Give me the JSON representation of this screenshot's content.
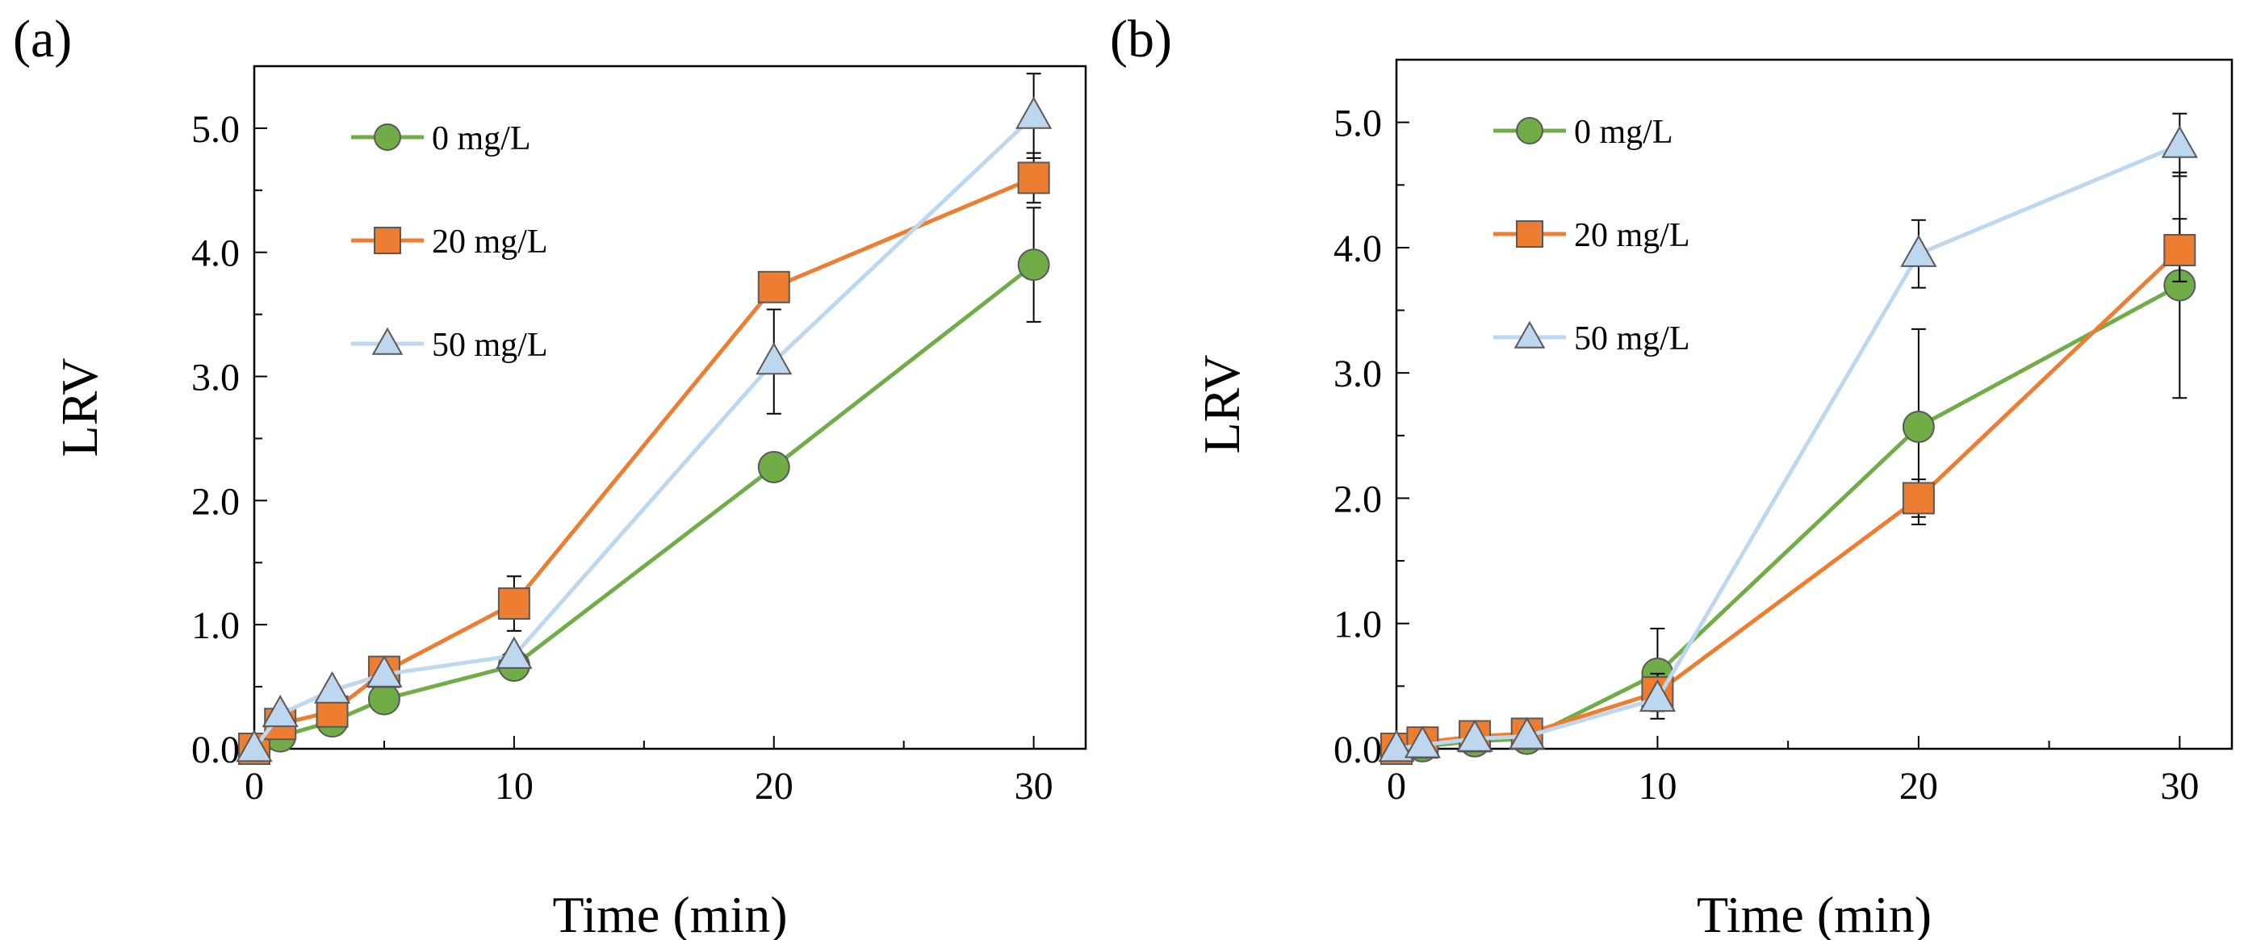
{
  "colors": {
    "0 mg/L": "#70ad47",
    "20 mg/L": "#ed7d31",
    "50 mg/L": "#bdd7ee",
    "marker_stroke": "#595959",
    "axis": "#000000"
  },
  "chart_data": [
    {
      "panel_label": "(a)",
      "type": "line",
      "xlabel": "Time (min)",
      "ylabel": "LRV",
      "xlim": [
        0,
        32
      ],
      "ylim": [
        0,
        5.5
      ],
      "xticks": [
        0,
        10,
        20,
        30
      ],
      "yticks": [
        "0.0",
        "1.0",
        "2.0",
        "3.0",
        "4.0",
        "5.0"
      ],
      "legend": "top-left",
      "series": [
        {
          "name": "0 mg/L",
          "marker": "circle",
          "x": [
            0,
            1,
            3,
            5,
            10,
            20,
            30
          ],
          "y": [
            0.0,
            0.1,
            0.22,
            0.4,
            0.67,
            2.27,
            3.9
          ],
          "err": [
            0,
            0,
            0,
            0,
            0,
            0,
            0.46
          ]
        },
        {
          "name": "20 mg/L",
          "marker": "square",
          "x": [
            0,
            1,
            3,
            5,
            10,
            20,
            30
          ],
          "y": [
            0.0,
            0.2,
            0.3,
            0.62,
            1.17,
            3.72,
            4.6
          ],
          "err": [
            0,
            0,
            0,
            0,
            0.22,
            0,
            0.2
          ]
        },
        {
          "name": "50 mg/L",
          "marker": "triangle",
          "x": [
            0,
            1,
            3,
            5,
            10,
            20,
            30
          ],
          "y": [
            0.0,
            0.28,
            0.47,
            0.6,
            0.75,
            3.12,
            5.1
          ],
          "err": [
            0,
            0,
            0,
            0,
            0,
            0.42,
            0.34
          ]
        }
      ]
    },
    {
      "panel_label": "(b)",
      "type": "line",
      "xlabel": "Time (min)",
      "ylabel": "LRV",
      "xlim": [
        0,
        32
      ],
      "ylim": [
        0,
        5.5
      ],
      "xticks": [
        0,
        10,
        20,
        30
      ],
      "yticks": [
        "0.0",
        "1.0",
        "2.0",
        "3.0",
        "4.0",
        "5.0"
      ],
      "legend": "top-left",
      "series": [
        {
          "name": "0 mg/L",
          "marker": "circle",
          "x": [
            0,
            1,
            3,
            5,
            10,
            20,
            30
          ],
          "y": [
            0.0,
            0.02,
            0.06,
            0.08,
            0.6,
            2.57,
            3.7
          ],
          "err": [
            0,
            0,
            0,
            0,
            0.36,
            0.78,
            0.9
          ]
        },
        {
          "name": "20 mg/L",
          "marker": "square",
          "x": [
            0,
            1,
            3,
            5,
            10,
            20,
            30
          ],
          "y": [
            0.0,
            0.05,
            0.1,
            0.12,
            0.45,
            2.0,
            3.98
          ],
          "err": [
            0,
            0,
            0,
            0,
            0.15,
            0.15,
            0.25
          ]
        },
        {
          "name": "50 mg/L",
          "marker": "triangle",
          "x": [
            0,
            1,
            3,
            5,
            10,
            20,
            30
          ],
          "y": [
            0.0,
            0.03,
            0.08,
            0.1,
            0.4,
            3.95,
            4.82
          ],
          "err": [
            0,
            0,
            0,
            0,
            0,
            0.27,
            0.25
          ]
        }
      ]
    }
  ]
}
